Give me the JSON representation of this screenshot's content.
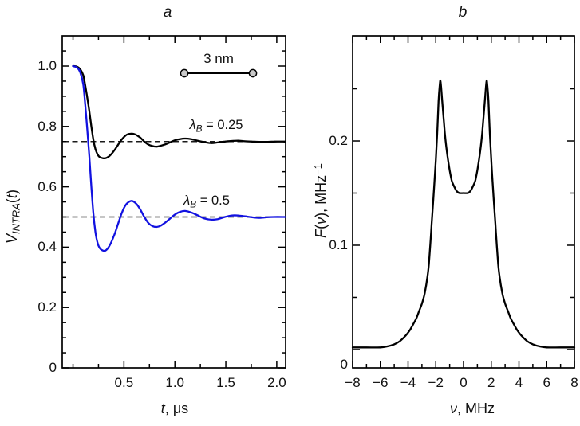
{
  "labels": {
    "panel_a_title": "a",
    "panel_b_title": "b",
    "a_y_title": {
      "v": "V",
      "sub": "INTRA",
      "open": "(",
      "var": "t",
      "close": ")"
    },
    "a_x_title": {
      "var": "t",
      "rest": ", μs"
    },
    "b_y_title": {
      "f": "F",
      "open": "(",
      "var": "ν",
      "rest": "), MHz",
      "sup": "−1"
    },
    "b_x_title": {
      "var": "ν",
      "rest": ", MHz"
    },
    "lambda_025": {
      "sym": "λ",
      "sub": "B",
      "rest": " = 0.25"
    },
    "lambda_05": {
      "sym": "λ",
      "sub": "B",
      "rest": " = 0.5"
    },
    "scalebar_label": "3 nm"
  },
  "colors": {
    "black_curve": "#000000",
    "blue_curve": "#1212e0",
    "axis": "#000000",
    "dashed_guide": "#1a1a1a",
    "sphere_fill": "#c9c9c9"
  },
  "chart_data": [
    {
      "id": "a",
      "type": "line",
      "title": "a",
      "xlabel": "t, μs",
      "ylabel": "V_INTRA(t)",
      "xlim": [
        -0.106,
        2.087
      ],
      "ylim": [
        0,
        1.1003
      ],
      "grid": false,
      "x_major_ticks": [
        0.5,
        1.0,
        1.5,
        2.0
      ],
      "x_tick_labels": [
        "0.5",
        "1.0",
        "1.5",
        "2.0"
      ],
      "x_minor_ticks": [
        0,
        0.25,
        0.75,
        1.25,
        1.75
      ],
      "y_major_ticks": [
        0,
        0.2,
        0.4,
        0.6,
        0.8,
        1.0
      ],
      "y_tick_labels": [
        "0",
        "0.2",
        "0.4",
        "0.6",
        "0.8",
        "1.0"
      ],
      "y_minor_ticks": [
        0.05,
        0.1,
        0.15,
        0.25,
        0.3,
        0.35,
        0.45,
        0.5,
        0.55,
        0.65,
        0.7,
        0.75,
        0.85,
        0.9,
        0.95,
        1.05
      ],
      "dashed_guides": [
        0.75,
        0.5
      ],
      "annotations": [
        "λB = 0.25",
        "λB = 0.5",
        "3 nm"
      ],
      "series": [
        {
          "name": "λB = 0.25",
          "color": "#000000",
          "x": [
            0,
            0.04,
            0.07,
            0.1,
            0.12,
            0.14,
            0.16,
            0.18,
            0.2,
            0.22,
            0.24,
            0.26,
            0.29,
            0.32,
            0.35,
            0.38,
            0.41,
            0.44,
            0.47,
            0.5,
            0.53,
            0.57,
            0.6,
            0.63,
            0.66,
            0.7,
            0.74,
            0.78,
            0.82,
            0.86,
            0.9,
            0.95,
            1.0,
            1.05,
            1.1,
            1.16,
            1.22,
            1.29,
            1.36,
            1.42,
            1.49,
            1.56,
            1.62,
            1.69,
            1.76,
            1.83,
            1.9,
            1.97,
            2.08
          ],
          "y": [
            1.0,
            0.998,
            0.99,
            0.97,
            0.935,
            0.895,
            0.85,
            0.8,
            0.755,
            0.725,
            0.708,
            0.699,
            0.695,
            0.695,
            0.7,
            0.71,
            0.723,
            0.738,
            0.753,
            0.765,
            0.773,
            0.776,
            0.775,
            0.77,
            0.763,
            0.75,
            0.74,
            0.735,
            0.733,
            0.736,
            0.74,
            0.747,
            0.754,
            0.758,
            0.76,
            0.758,
            0.753,
            0.748,
            0.745,
            0.747,
            0.75,
            0.752,
            0.753,
            0.751,
            0.75,
            0.749,
            0.749,
            0.75,
            0.75
          ]
        },
        {
          "name": "λB = 0.5",
          "color": "#1212e0",
          "x": [
            0,
            0.04,
            0.07,
            0.1,
            0.12,
            0.14,
            0.16,
            0.18,
            0.2,
            0.22,
            0.24,
            0.26,
            0.29,
            0.32,
            0.35,
            0.38,
            0.41,
            0.44,
            0.47,
            0.5,
            0.53,
            0.57,
            0.6,
            0.63,
            0.66,
            0.7,
            0.74,
            0.78,
            0.82,
            0.86,
            0.9,
            0.95,
            1.0,
            1.05,
            1.1,
            1.16,
            1.22,
            1.29,
            1.36,
            1.42,
            1.49,
            1.56,
            1.62,
            1.69,
            1.76,
            1.83,
            1.9,
            1.97,
            2.08
          ],
          "y": [
            1.0,
            0.995,
            0.98,
            0.94,
            0.87,
            0.79,
            0.7,
            0.6,
            0.51,
            0.45,
            0.415,
            0.398,
            0.389,
            0.389,
            0.4,
            0.42,
            0.445,
            0.475,
            0.505,
            0.53,
            0.545,
            0.553,
            0.55,
            0.54,
            0.525,
            0.5,
            0.48,
            0.47,
            0.467,
            0.471,
            0.48,
            0.494,
            0.508,
            0.517,
            0.52,
            0.515,
            0.506,
            0.495,
            0.491,
            0.493,
            0.5,
            0.505,
            0.505,
            0.502,
            0.499,
            0.497,
            0.499,
            0.5,
            0.5
          ]
        }
      ]
    },
    {
      "id": "b",
      "type": "line",
      "title": "b",
      "xlabel": "ν, MHz",
      "ylabel": "F(ν), MHz⁻¹",
      "xlim": [
        -8,
        8
      ],
      "ylim": [
        -0.0176,
        0.3008
      ],
      "grid": false,
      "x_major_ticks": [
        -8,
        -6,
        -4,
        -2,
        0,
        2,
        4,
        6,
        8
      ],
      "x_tick_labels": [
        "−8",
        "−6",
        "−4",
        "−2",
        "0",
        "2",
        "4",
        "6",
        "8"
      ],
      "x_minor_ticks": [
        -7,
        -5,
        -3,
        -1,
        1,
        3,
        5,
        7
      ],
      "y_major_ticks": [
        0,
        0.1,
        0.2
      ],
      "y_tick_labels": [
        "0",
        "0.1",
        "0.2"
      ],
      "y_minor_ticks": [
        0.05,
        0.15,
        0.25
      ],
      "dashed_guides": [],
      "series": [
        {
          "name": "F(ν)",
          "color": "#000000",
          "x": [
            -8,
            -7,
            -6,
            -5.5,
            -5,
            -4.6,
            -4.2,
            -3.9,
            -3.6,
            -3.4,
            -3.2,
            -3,
            -2.8,
            -2.6,
            -2.5,
            -2.4,
            -2.3,
            -2.2,
            -2.1,
            -2,
            -1.9,
            -1.8,
            -1.72,
            -1.67,
            -1.62,
            -1.55,
            -1.45,
            -1.35,
            -1.25,
            -1.15,
            -1,
            -0.85,
            -0.7,
            -0.5,
            -0.3,
            0,
            0.3,
            0.5,
            0.7,
            0.85,
            1,
            1.15,
            1.25,
            1.35,
            1.45,
            1.55,
            1.62,
            1.67,
            1.72,
            1.8,
            1.9,
            2,
            2.1,
            2.2,
            2.3,
            2.4,
            2.5,
            2.6,
            2.8,
            3,
            3.2,
            3.4,
            3.6,
            3.9,
            4.2,
            4.6,
            5,
            5.5,
            6,
            7,
            8
          ],
          "y": [
            0.002,
            0.002,
            0.002,
            0.003,
            0.005,
            0.008,
            0.013,
            0.018,
            0.025,
            0.03,
            0.037,
            0.044,
            0.054,
            0.07,
            0.082,
            0.1,
            0.12,
            0.14,
            0.16,
            0.182,
            0.207,
            0.238,
            0.253,
            0.258,
            0.252,
            0.24,
            0.224,
            0.208,
            0.195,
            0.185,
            0.172,
            0.162,
            0.157,
            0.152,
            0.15,
            0.15,
            0.15,
            0.152,
            0.157,
            0.162,
            0.172,
            0.185,
            0.195,
            0.208,
            0.224,
            0.24,
            0.252,
            0.258,
            0.253,
            0.238,
            0.207,
            0.182,
            0.16,
            0.14,
            0.12,
            0.1,
            0.082,
            0.07,
            0.054,
            0.044,
            0.037,
            0.03,
            0.025,
            0.018,
            0.013,
            0.008,
            0.005,
            0.003,
            0.002,
            0.002,
            0.002
          ]
        }
      ]
    }
  ]
}
